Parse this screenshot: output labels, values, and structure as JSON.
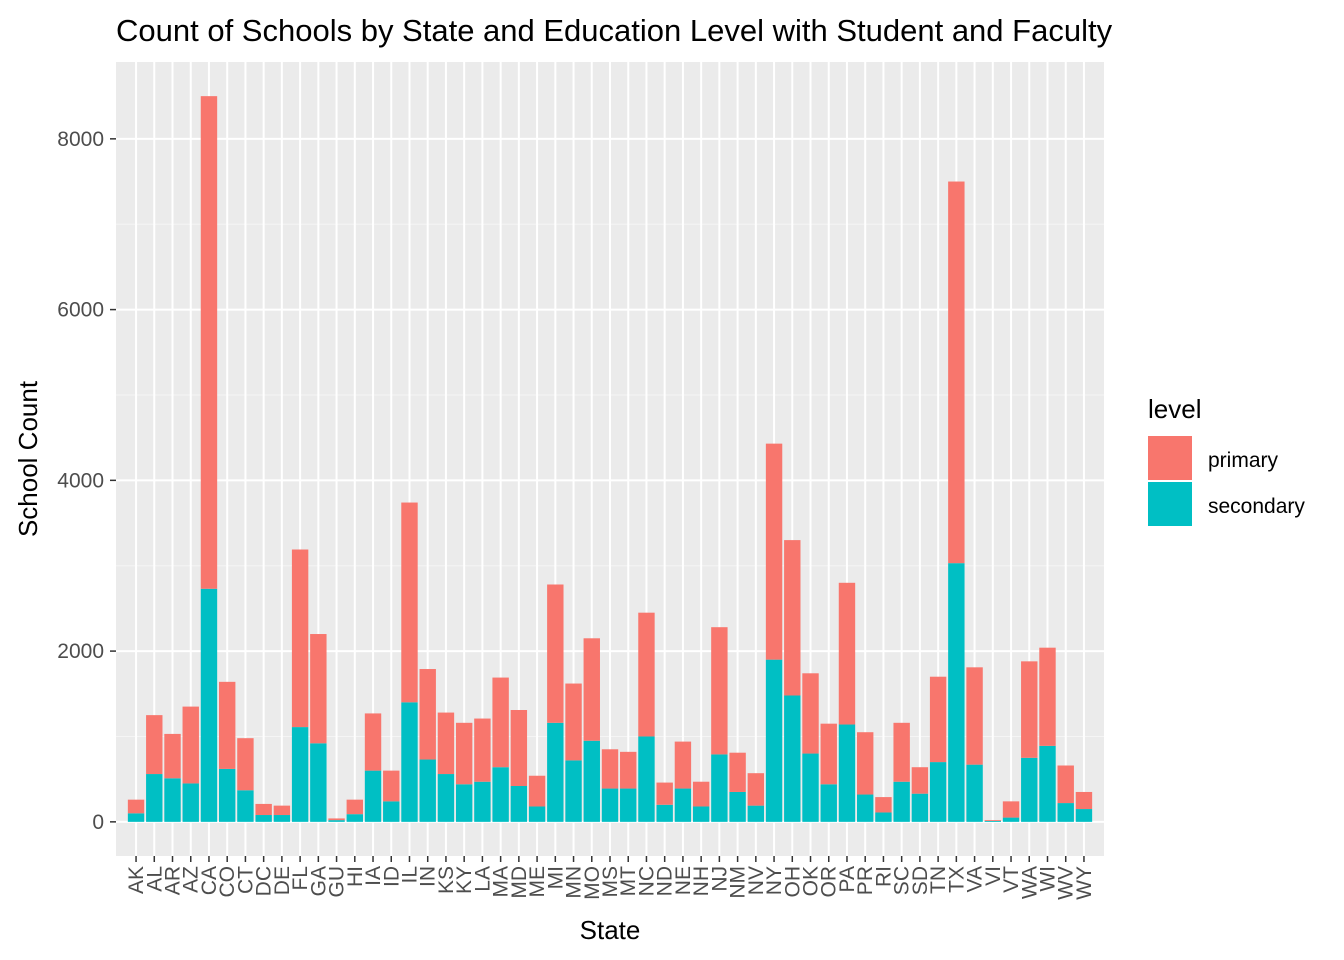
{
  "chart_data": {
    "type": "bar",
    "stacked": true,
    "title": "Count of Schools by State and Education Level with Student and Faculty",
    "xlabel": "State",
    "ylabel": "School Count",
    "ylim": [
      -400,
      8900
    ],
    "yticks": [
      0,
      2000,
      4000,
      6000,
      8000
    ],
    "grid": true,
    "legend": {
      "title": "level",
      "position": "right"
    },
    "categories": [
      "AK",
      "AL",
      "AR",
      "AZ",
      "CA",
      "CO",
      "CT",
      "DC",
      "DE",
      "FL",
      "GA",
      "GU",
      "HI",
      "IA",
      "ID",
      "IL",
      "IN",
      "KS",
      "KY",
      "LA",
      "MA",
      "MD",
      "ME",
      "MI",
      "MN",
      "MO",
      "MS",
      "MT",
      "NC",
      "ND",
      "NE",
      "NH",
      "NJ",
      "NM",
      "NV",
      "NY",
      "OH",
      "OK",
      "OR",
      "PA",
      "PR",
      "RI",
      "SC",
      "SD",
      "TN",
      "TX",
      "VA",
      "VI",
      "VT",
      "WA",
      "WI",
      "WV",
      "WY"
    ],
    "series": [
      {
        "name": "secondary",
        "color": "#00BFC4",
        "values": [
          100,
          560,
          510,
          450,
          2730,
          620,
          370,
          80,
          80,
          1110,
          920,
          20,
          90,
          600,
          240,
          1400,
          730,
          560,
          440,
          470,
          640,
          420,
          180,
          1160,
          720,
          950,
          390,
          390,
          1000,
          200,
          390,
          180,
          790,
          350,
          190,
          1900,
          1480,
          800,
          440,
          1140,
          320,
          110,
          470,
          330,
          700,
          3030,
          670,
          10,
          50,
          750,
          890,
          220,
          150
        ]
      },
      {
        "name": "primary",
        "color": "#F8766D",
        "values": [
          160,
          690,
          520,
          900,
          5770,
          1020,
          610,
          130,
          110,
          2080,
          1280,
          20,
          170,
          670,
          360,
          2340,
          1060,
          720,
          720,
          740,
          1050,
          890,
          360,
          1620,
          900,
          1200,
          460,
          430,
          1450,
          260,
          550,
          290,
          1490,
          460,
          380,
          2530,
          1820,
          940,
          710,
          1660,
          730,
          180,
          690,
          310,
          1000,
          4470,
          1140,
          10,
          190,
          1130,
          1150,
          440,
          200
        ]
      }
    ]
  }
}
